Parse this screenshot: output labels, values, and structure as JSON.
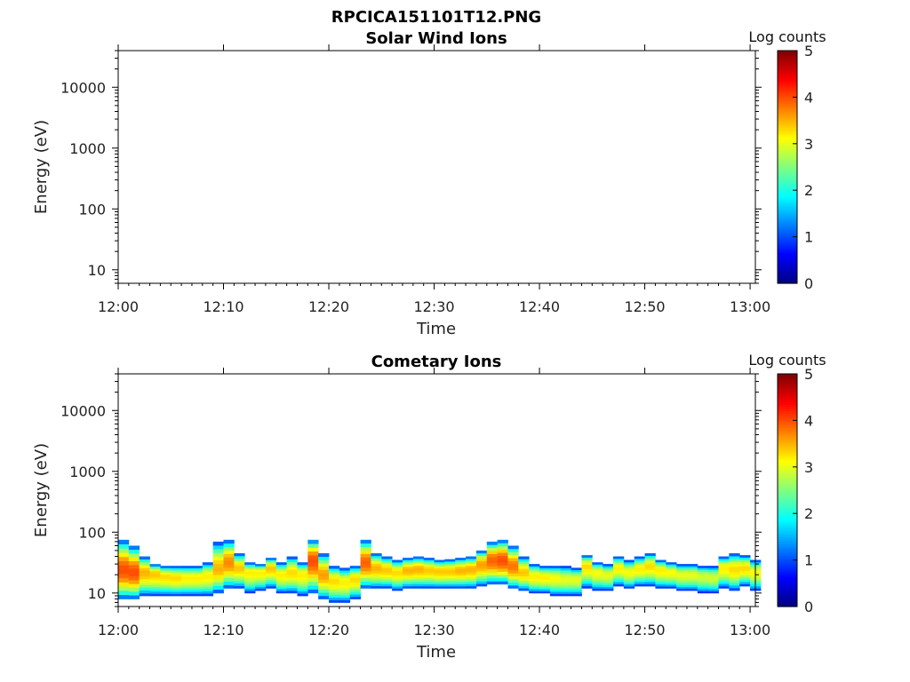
{
  "figure_title": "RPCICA151101T12.PNG",
  "chart_data": [
    {
      "type": "heatmap",
      "title": "Solar Wind Ions",
      "xlabel": "Time",
      "ylabel": "Energy (eV)",
      "x_tick_labels": [
        "12:00",
        "12:10",
        "12:20",
        "12:30",
        "12:40",
        "12:50",
        "13:00"
      ],
      "x_range_minutes": [
        0,
        60.5
      ],
      "y_tick_labels": [
        "10",
        "100",
        "1000",
        "10000"
      ],
      "y_tick_values": [
        10,
        100,
        1000,
        10000
      ],
      "y_scale": "log",
      "ylim": [
        6,
        40000
      ],
      "colorbar": {
        "label": "Log counts",
        "ticks": [
          "0",
          "1",
          "2",
          "3",
          "4",
          "5"
        ],
        "range": [
          0,
          5
        ],
        "colormap": "jet"
      },
      "band": []
    },
    {
      "type": "heatmap",
      "title": "Cometary Ions",
      "xlabel": "Time",
      "ylabel": "Energy (eV)",
      "x_tick_labels": [
        "12:00",
        "12:10",
        "12:20",
        "12:30",
        "12:40",
        "12:50",
        "13:00"
      ],
      "x_range_minutes": [
        0,
        60.5
      ],
      "y_tick_labels": [
        "10",
        "100",
        "1000",
        "10000"
      ],
      "y_tick_values": [
        10,
        100,
        1000,
        10000
      ],
      "y_scale": "log",
      "ylim": [
        6,
        40000
      ],
      "colorbar": {
        "label": "Log counts",
        "ticks": [
          "0",
          "1",
          "2",
          "3",
          "4",
          "5"
        ],
        "range": [
          0,
          5
        ],
        "colormap": "jet"
      },
      "band": [
        {
          "t": 0,
          "e_low": 8,
          "e_high": 75,
          "e_peak": 24,
          "peak_log": 4.0
        },
        {
          "t": 1,
          "e_low": 8,
          "e_high": 60,
          "e_peak": 22,
          "peak_log": 4.0
        },
        {
          "t": 2,
          "e_low": 9,
          "e_high": 40,
          "e_peak": 22,
          "peak_log": 3.5
        },
        {
          "t": 3,
          "e_low": 9,
          "e_high": 30,
          "e_peak": 21,
          "peak_log": 3.4
        },
        {
          "t": 4,
          "e_low": 9,
          "e_high": 28,
          "e_peak": 19,
          "peak_log": 3.3
        },
        {
          "t": 5,
          "e_low": 9,
          "e_high": 28,
          "e_peak": 18,
          "peak_log": 3.3
        },
        {
          "t": 6,
          "e_low": 9,
          "e_high": 28,
          "e_peak": 18,
          "peak_log": 3.2
        },
        {
          "t": 7,
          "e_low": 9,
          "e_high": 28,
          "e_peak": 18,
          "peak_log": 3.2
        },
        {
          "t": 8,
          "e_low": 9,
          "e_high": 32,
          "e_peak": 19,
          "peak_log": 3.2
        },
        {
          "t": 9,
          "e_low": 10,
          "e_high": 70,
          "e_peak": 25,
          "peak_log": 3.5
        },
        {
          "t": 10,
          "e_low": 12,
          "e_high": 75,
          "e_peak": 32,
          "peak_log": 3.7
        },
        {
          "t": 11,
          "e_low": 12,
          "e_high": 45,
          "e_peak": 26,
          "peak_log": 3.4
        },
        {
          "t": 12,
          "e_low": 10,
          "e_high": 32,
          "e_peak": 22,
          "peak_log": 3.2
        },
        {
          "t": 13,
          "e_low": 11,
          "e_high": 30,
          "e_peak": 22,
          "peak_log": 3.2
        },
        {
          "t": 14,
          "e_low": 12,
          "e_high": 38,
          "e_peak": 26,
          "peak_log": 3.4
        },
        {
          "t": 15,
          "e_low": 10,
          "e_high": 32,
          "e_peak": 20,
          "peak_log": 3.2
        },
        {
          "t": 16,
          "e_low": 10,
          "e_high": 40,
          "e_peak": 22,
          "peak_log": 3.3
        },
        {
          "t": 17,
          "e_low": 9,
          "e_high": 32,
          "e_peak": 20,
          "peak_log": 3.2
        },
        {
          "t": 18,
          "e_low": 10,
          "e_high": 75,
          "e_peak": 35,
          "peak_log": 4.0
        },
        {
          "t": 19,
          "e_low": 8,
          "e_high": 45,
          "e_peak": 20,
          "peak_log": 3.6
        },
        {
          "t": 20,
          "e_low": 7,
          "e_high": 28,
          "e_peak": 16,
          "peak_log": 3.3
        },
        {
          "t": 21,
          "e_low": 7,
          "e_high": 26,
          "e_peak": 15,
          "peak_log": 3.2
        },
        {
          "t": 22,
          "e_low": 8,
          "e_high": 28,
          "e_peak": 17,
          "peak_log": 3.3
        },
        {
          "t": 23,
          "e_low": 12,
          "e_high": 75,
          "e_peak": 32,
          "peak_log": 3.9
        },
        {
          "t": 24,
          "e_low": 12,
          "e_high": 45,
          "e_peak": 26,
          "peak_log": 3.5
        },
        {
          "t": 25,
          "e_low": 12,
          "e_high": 40,
          "e_peak": 24,
          "peak_log": 3.4
        },
        {
          "t": 26,
          "e_low": 11,
          "e_high": 35,
          "e_peak": 22,
          "peak_log": 3.3
        },
        {
          "t": 27,
          "e_low": 12,
          "e_high": 38,
          "e_peak": 24,
          "peak_log": 3.5
        },
        {
          "t": 28,
          "e_low": 12,
          "e_high": 40,
          "e_peak": 25,
          "peak_log": 3.5
        },
        {
          "t": 29,
          "e_low": 12,
          "e_high": 38,
          "e_peak": 24,
          "peak_log": 3.4
        },
        {
          "t": 30,
          "e_low": 12,
          "e_high": 35,
          "e_peak": 23,
          "peak_log": 3.4
        },
        {
          "t": 31,
          "e_low": 12,
          "e_high": 36,
          "e_peak": 23,
          "peak_log": 3.4
        },
        {
          "t": 32,
          "e_low": 12,
          "e_high": 38,
          "e_peak": 24,
          "peak_log": 3.5
        },
        {
          "t": 33,
          "e_low": 12,
          "e_high": 40,
          "e_peak": 25,
          "peak_log": 3.5
        },
        {
          "t": 34,
          "e_low": 13,
          "e_high": 50,
          "e_peak": 30,
          "peak_log": 3.6
        },
        {
          "t": 35,
          "e_low": 14,
          "e_high": 70,
          "e_peak": 35,
          "peak_log": 3.9
        },
        {
          "t": 36,
          "e_low": 14,
          "e_high": 75,
          "e_peak": 35,
          "peak_log": 4.0
        },
        {
          "t": 37,
          "e_low": 12,
          "e_high": 60,
          "e_peak": 28,
          "peak_log": 3.8
        },
        {
          "t": 38,
          "e_low": 11,
          "e_high": 40,
          "e_peak": 22,
          "peak_log": 3.4
        },
        {
          "t": 39,
          "e_low": 10,
          "e_high": 30,
          "e_peak": 19,
          "peak_log": 3.2
        },
        {
          "t": 40,
          "e_low": 10,
          "e_high": 28,
          "e_peak": 18,
          "peak_log": 3.2
        },
        {
          "t": 41,
          "e_low": 9,
          "e_high": 28,
          "e_peak": 18,
          "peak_log": 3.1
        },
        {
          "t": 42,
          "e_low": 9,
          "e_high": 28,
          "e_peak": 17,
          "peak_log": 3.0
        },
        {
          "t": 43,
          "e_low": 9,
          "e_high": 26,
          "e_peak": 17,
          "peak_log": 3.0
        },
        {
          "t": 44,
          "e_low": 12,
          "e_high": 42,
          "e_peak": 28,
          "peak_log": 3.3
        },
        {
          "t": 45,
          "e_low": 11,
          "e_high": 32,
          "e_peak": 22,
          "peak_log": 3.1
        },
        {
          "t": 46,
          "e_low": 11,
          "e_high": 30,
          "e_peak": 20,
          "peak_log": 3.0
        },
        {
          "t": 47,
          "e_low": 13,
          "e_high": 40,
          "e_peak": 26,
          "peak_log": 3.2
        },
        {
          "t": 48,
          "e_low": 12,
          "e_high": 35,
          "e_peak": 22,
          "peak_log": 3.1
        },
        {
          "t": 49,
          "e_low": 13,
          "e_high": 40,
          "e_peak": 25,
          "peak_log": 3.2
        },
        {
          "t": 50,
          "e_low": 13,
          "e_high": 45,
          "e_peak": 28,
          "peak_log": 3.3
        },
        {
          "t": 51,
          "e_low": 12,
          "e_high": 35,
          "e_peak": 24,
          "peak_log": 3.2
        },
        {
          "t": 52,
          "e_low": 12,
          "e_high": 32,
          "e_peak": 22,
          "peak_log": 3.1
        },
        {
          "t": 53,
          "e_low": 11,
          "e_high": 30,
          "e_peak": 20,
          "peak_log": 3.0
        },
        {
          "t": 54,
          "e_low": 11,
          "e_high": 30,
          "e_peak": 20,
          "peak_log": 3.0
        },
        {
          "t": 55,
          "e_low": 10,
          "e_high": 28,
          "e_peak": 19,
          "peak_log": 2.9
        },
        {
          "t": 56,
          "e_low": 10,
          "e_high": 28,
          "e_peak": 18,
          "peak_log": 2.9
        },
        {
          "t": 57,
          "e_low": 12,
          "e_high": 40,
          "e_peak": 26,
          "peak_log": 3.2
        },
        {
          "t": 58,
          "e_low": 11,
          "e_high": 45,
          "e_peak": 25,
          "peak_log": 3.3
        },
        {
          "t": 59,
          "e_low": 13,
          "e_high": 42,
          "e_peak": 26,
          "peak_log": 3.3
        },
        {
          "t": 60,
          "e_low": 11,
          "e_high": 35,
          "e_peak": 22,
          "peak_log": 3.1
        }
      ]
    }
  ]
}
